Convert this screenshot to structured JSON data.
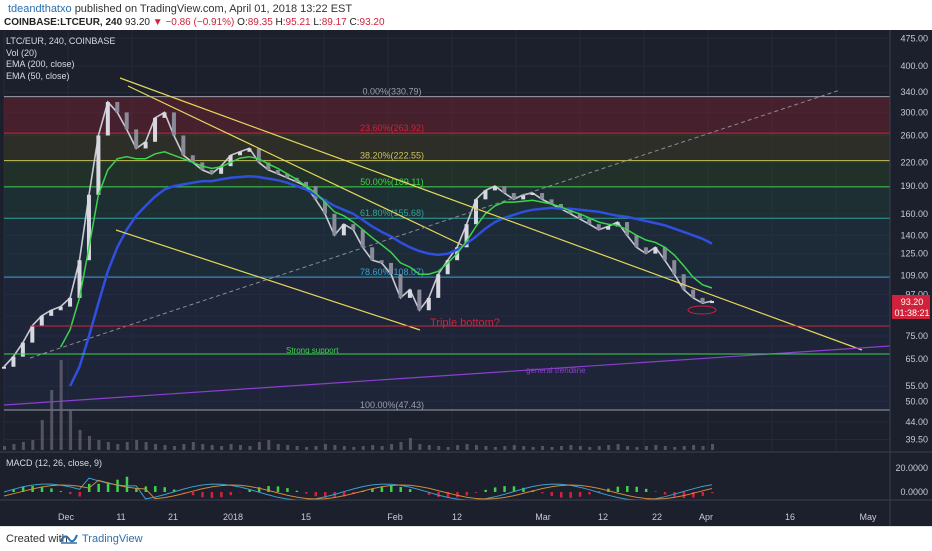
{
  "header": {
    "author": "tdeandthatxo",
    "published": "published on TradingView.com, April 01, 2018 13:22 EST",
    "symbol": "COINBASE:LTCEUR, 240",
    "last": "93.20",
    "change": "▼ −0.86 (−0.91%)",
    "open_label": "O:",
    "open": "89.35",
    "high_label": "H:",
    "high": "95.21",
    "low_label": "L:",
    "low": "89.17",
    "close_label": "C:",
    "close": "93.20"
  },
  "legend": {
    "title": "LTC/EUR, 240, COINBASE",
    "vol": "Vol (20)",
    "ema200": "EMA (200, close)",
    "ema50": "EMA (50, close)"
  },
  "macd_label": "MACD (12, 26, close, 9)",
  "colors": {
    "background": "#1c1f2c",
    "ema50": "#3bd44c",
    "ema200": "#2f4fe0",
    "trendline": "#e6d85a",
    "general_trendline": "#8a3fd0",
    "support_line": "#3bd44c",
    "triple_bottom_line": "#d0223a"
  },
  "chart_data": {
    "type": "line",
    "title": "LTC/EUR, 240, COINBASE",
    "y_axis": {
      "scale": "log",
      "ticks": [
        "475.00",
        "400.00",
        "340.00",
        "300.00",
        "260.00",
        "220.00",
        "190.00",
        "160.00",
        "140.00",
        "125.00",
        "109.00",
        "97.00",
        "85.00",
        "75.00",
        "65.00",
        "55.00",
        "50.00",
        "44.00",
        "39.50"
      ],
      "range": [
        37,
        500
      ]
    },
    "x_axis": {
      "ticks": [
        "Dec",
        "11",
        "21",
        "2018",
        "15",
        "Feb",
        "12",
        "Mar",
        "12",
        "22",
        "Apr",
        "16",
        "May"
      ]
    },
    "price_label": "93.20",
    "countdown_label": "01:38:21",
    "fibonacci": [
      {
        "label": "0.00%(330.79)",
        "value": 330.79,
        "color": "#9aa0aa"
      },
      {
        "label": "23.60%(263.92)",
        "value": 263.92,
        "color": "#d0223a"
      },
      {
        "label": "38.20%(222.55)",
        "value": 222.55,
        "color": "#c9c25a"
      },
      {
        "label": "50.00%(189.11)",
        "value": 189.11,
        "color": "#3bd44c"
      },
      {
        "label": "61.80%(155.68)",
        "value": 155.68,
        "color": "#2fa39a"
      },
      {
        "label": "78.60%(108.07)",
        "value": 108.07,
        "color": "#3aa0d0"
      },
      {
        "label": "100.00%(47.43)",
        "value": 47.43,
        "color": "#9aa0aa"
      }
    ],
    "annotations": [
      {
        "text": "Triple bottom?",
        "color": "#d0223a"
      },
      {
        "text": "Strong support",
        "color": "#3bd44c"
      },
      {
        "text": "general trendline",
        "color": "#8a3fd0"
      }
    ],
    "macd_axis": [
      "20.0000",
      "0.0000"
    ],
    "price_series": [
      62,
      66,
      72,
      80,
      85,
      88,
      90,
      95,
      120,
      180,
      260,
      320,
      300,
      270,
      240,
      250,
      290,
      300,
      260,
      230,
      220,
      210,
      205,
      215,
      230,
      235,
      240,
      220,
      210,
      205,
      200,
      195,
      190,
      175,
      160,
      140,
      150,
      145,
      130,
      120,
      118,
      110,
      95,
      100,
      88,
      95,
      110,
      120,
      130,
      150,
      175,
      185,
      190,
      182,
      175,
      180,
      182,
      175,
      170,
      165,
      160,
      155,
      150,
      145,
      148,
      152,
      140,
      130,
      125,
      130,
      120,
      110,
      100,
      95,
      92,
      93.2
    ],
    "ema50_series": [
      null,
      null,
      null,
      null,
      null,
      null,
      70,
      78,
      95,
      130,
      180,
      210,
      225,
      228,
      225,
      225,
      232,
      235,
      230,
      225,
      220,
      215,
      212,
      214,
      220,
      226,
      228,
      225,
      218,
      212,
      205,
      198,
      190,
      182,
      172,
      162,
      158,
      152,
      145,
      138,
      132,
      126,
      118,
      115,
      110,
      110,
      112,
      118,
      125,
      135,
      148,
      160,
      168,
      172,
      172,
      173,
      174,
      172,
      170,
      167,
      163,
      160,
      156,
      152,
      150,
      149,
      145,
      140,
      136,
      134,
      130,
      124,
      116,
      108,
      103,
      101
    ],
    "ema200_series": [
      null,
      null,
      null,
      null,
      null,
      null,
      null,
      55,
      62,
      75,
      92,
      112,
      130,
      145,
      158,
      168,
      178,
      186,
      190,
      192,
      194,
      196,
      196,
      198,
      200,
      201,
      202,
      201,
      199,
      197,
      194,
      190,
      186,
      180,
      174,
      168,
      164,
      160,
      154,
      148,
      143,
      139,
      134,
      130,
      127,
      125,
      124,
      125,
      128,
      133,
      139,
      146,
      152,
      156,
      159,
      162,
      164,
      165,
      166,
      165,
      165,
      164,
      163,
      162,
      160,
      158,
      157,
      155,
      153,
      151,
      149,
      146,
      143,
      140,
      137,
      133
    ]
  }
}
